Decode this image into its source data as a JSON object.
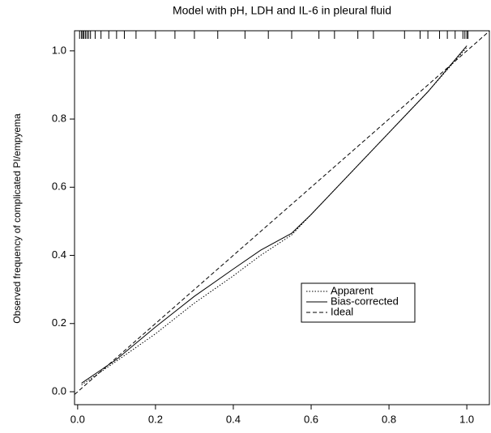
{
  "chart_data": {
    "type": "line",
    "title": "Model with pH, LDH and IL-6 in pleural fluid",
    "y_label": "Observed frequency of complicated PI/empyema",
    "xlim": [
      -0.008,
      1.058
    ],
    "ylim": [
      -0.038,
      1.059
    ],
    "xticks": [
      {
        "value": 0,
        "label": "0.0"
      },
      0.2,
      0.4,
      0.6,
      0.8,
      {
        "value": 1,
        "label": "1.0"
      }
    ],
    "yticks": [
      {
        "value": 0,
        "label": "0.0"
      },
      0.2,
      0.4,
      0.6,
      0.8,
      {
        "value": 1,
        "label": "1.0"
      }
    ],
    "x": [
      0.01,
      0.1,
      0.2,
      0.3,
      0.4,
      0.47,
      0.55,
      0.6,
      0.7,
      0.8,
      0.9,
      1.0
    ],
    "series": [
      {
        "name": "Apparent",
        "color": "#000000",
        "line_style": "dotted",
        "values": [
          0.02,
          0.09,
          0.17,
          0.26,
          0.34,
          0.4,
          0.46,
          0.52,
          0.64,
          0.76,
          0.88,
          1.01
        ]
      },
      {
        "name": "Bias-corrected",
        "color": "#000000",
        "line_style": "solid",
        "values": [
          0.025,
          0.095,
          0.19,
          0.28,
          0.36,
          0.415,
          0.465,
          0.52,
          0.64,
          0.76,
          0.88,
          1.015
        ]
      }
    ],
    "ideal": {
      "name": "Ideal",
      "color": "#000000",
      "line_style": "dashed",
      "x": [
        -0.008,
        1.058
      ],
      "values": [
        -0.008,
        1.058
      ]
    },
    "rug": [
      0.005,
      0.01,
      0.013,
      0.016,
      0.02,
      0.024,
      0.028,
      0.033,
      0.045,
      0.06,
      0.08,
      0.1,
      0.12,
      0.15,
      0.2,
      0.25,
      0.3,
      0.36,
      0.43,
      0.49,
      0.55,
      0.62,
      0.66,
      0.72,
      0.76,
      0.84,
      0.88,
      0.9,
      0.93,
      0.95,
      0.97,
      0.99,
      0.995,
      1.0,
      1.003
    ]
  }
}
